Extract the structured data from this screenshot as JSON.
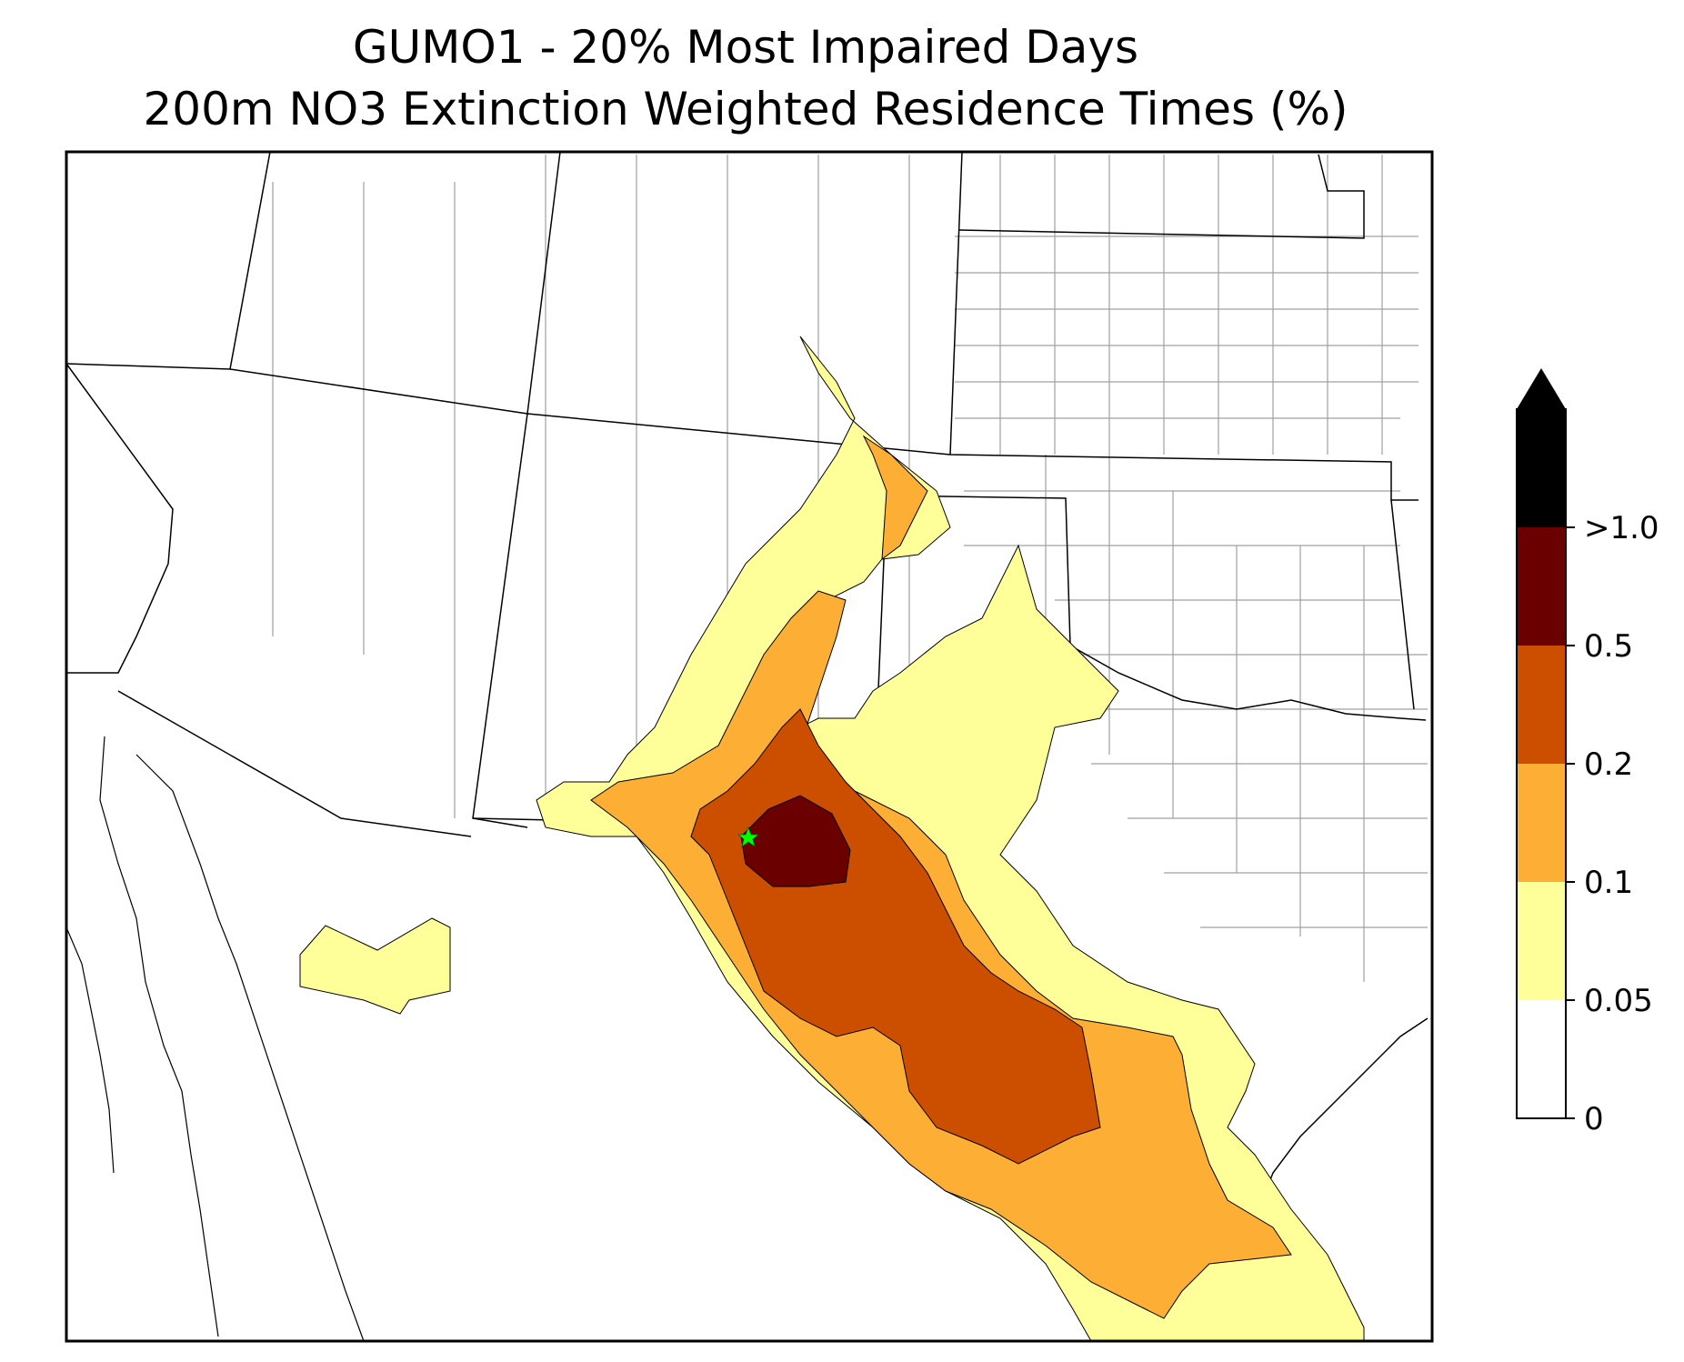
{
  "title": "GUMO1 - 20% Most Impaired Days",
  "subtitle": "200m NO3 Extinction Weighted Residence Times (%)",
  "site_marker": {
    "icon": "star-icon",
    "color": "#00ff00"
  },
  "colorbar": {
    "extend": "max",
    "bins": [
      {
        "label": "0",
        "color": "#ffffff"
      },
      {
        "label": "0.05",
        "color": "#ffff99"
      },
      {
        "label": "0.1",
        "color": "#fdae35"
      },
      {
        "label": "0.2",
        "color": "#cc4f00"
      },
      {
        "label": "0.5",
        "color": "#6a0000"
      },
      {
        "label": ">1.0",
        "color": "#000000"
      }
    ]
  },
  "legend_colors": {
    "lt_0_1": "#ffff99",
    "lt_0_2": "#fdae35",
    "lt_0_5": "#cc4f00",
    "lt_1_0": "#6a0000",
    "gt_1_0": "#000000"
  }
}
